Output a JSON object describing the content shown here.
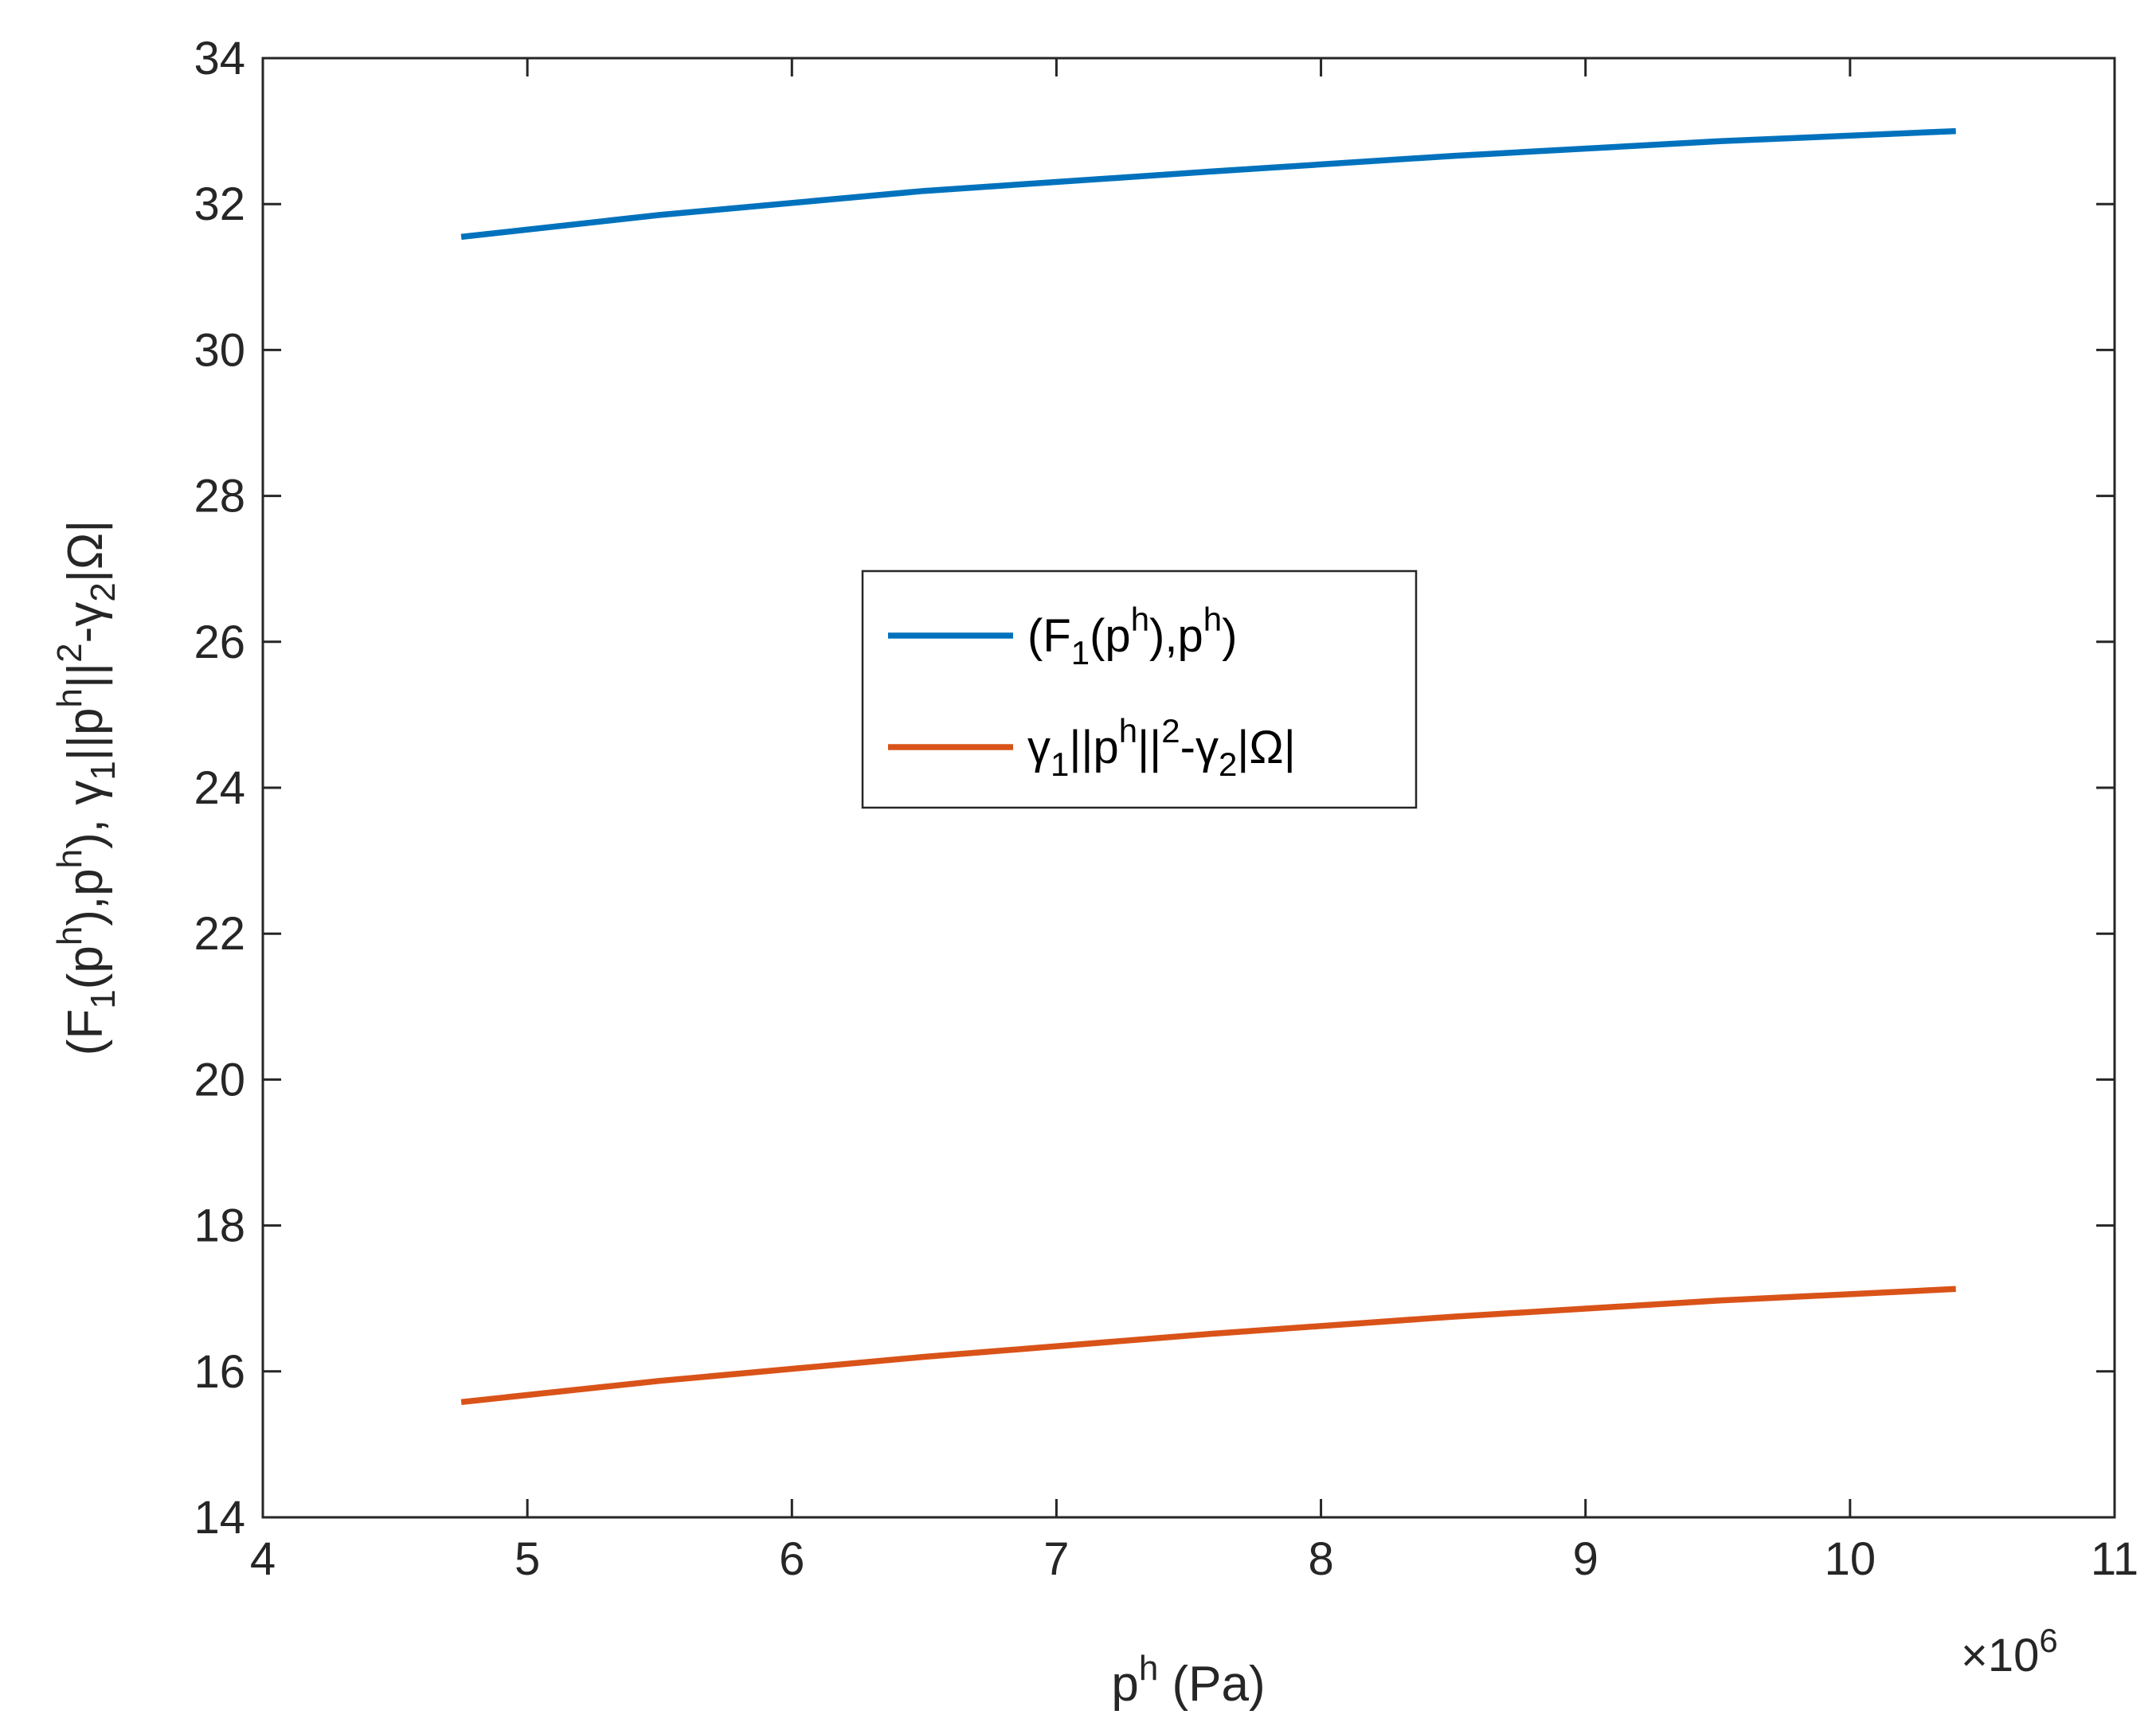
{
  "chart_data": {
    "type": "line",
    "xlabel": {
      "base": "p",
      "sup": "h",
      "rest": " (Pa)"
    },
    "ylabel_parts": [
      {
        "t": "(F",
        "s": "n"
      },
      {
        "t": "1",
        "s": "sub"
      },
      {
        "t": "(p",
        "s": "n"
      },
      {
        "t": "h",
        "s": "sup"
      },
      {
        "t": "),p",
        "s": "n"
      },
      {
        "t": "h",
        "s": "sup"
      },
      {
        "t": "), ",
        "s": "n"
      },
      {
        "t": "γ",
        "s": "n"
      },
      {
        "t": "1",
        "s": "sub"
      },
      {
        "t": "||p",
        "s": "n"
      },
      {
        "t": "h",
        "s": "sup"
      },
      {
        "t": "||",
        "s": "n"
      },
      {
        "t": "2",
        "s": "sup"
      },
      {
        "t": "-",
        "s": "n"
      },
      {
        "t": "γ",
        "s": "n"
      },
      {
        "t": "2",
        "s": "sub"
      },
      {
        "t": "|Ω|",
        "s": "n"
      }
    ],
    "xlim": [
      4,
      11
    ],
    "ylim": [
      14,
      34
    ],
    "xticks": [
      "4",
      "5",
      "6",
      "7",
      "8",
      "9",
      "10",
      "11"
    ],
    "yticks": [
      "14",
      "16",
      "18",
      "20",
      "22",
      "24",
      "26",
      "28",
      "30",
      "32",
      "34"
    ],
    "x_multiplier": {
      "times": "×10",
      "exp": "6"
    },
    "grid": false,
    "legend_position": "center",
    "series": [
      {
        "name": "(F1(ph),ph)",
        "label_parts": [
          {
            "t": "(F",
            "s": "n"
          },
          {
            "t": "1",
            "s": "sub"
          },
          {
            "t": "(p",
            "s": "n"
          },
          {
            "t": "h",
            "s": "sup"
          },
          {
            "t": "),p",
            "s": "n"
          },
          {
            "t": "h",
            "s": "sup"
          },
          {
            "t": ")",
            "s": "n"
          }
        ],
        "color": "#0072BD",
        "x": [
          4.75,
          5.5,
          6.5,
          7.6,
          8.5,
          9.5,
          10.4
        ],
        "y": [
          31.55,
          31.85,
          32.18,
          32.45,
          32.66,
          32.86,
          33.0
        ]
      },
      {
        "name": "γ1||ph||2-γ2|Ω|",
        "label_parts": [
          {
            "t": "γ",
            "s": "n"
          },
          {
            "t": "1",
            "s": "sub"
          },
          {
            "t": "||p",
            "s": "n"
          },
          {
            "t": "h",
            "s": "sup"
          },
          {
            "t": "||",
            "s": "n"
          },
          {
            "t": "2",
            "s": "sup"
          },
          {
            "t": "-",
            "s": "n"
          },
          {
            "t": "γ",
            "s": "n"
          },
          {
            "t": "2",
            "s": "sub"
          },
          {
            "t": "|Ω|",
            "s": "n"
          }
        ],
        "color": "#D95319",
        "x": [
          4.75,
          5.5,
          6.5,
          7.6,
          8.5,
          9.5,
          10.4
        ],
        "y": [
          15.58,
          15.87,
          16.2,
          16.52,
          16.75,
          16.97,
          17.13
        ]
      }
    ]
  }
}
